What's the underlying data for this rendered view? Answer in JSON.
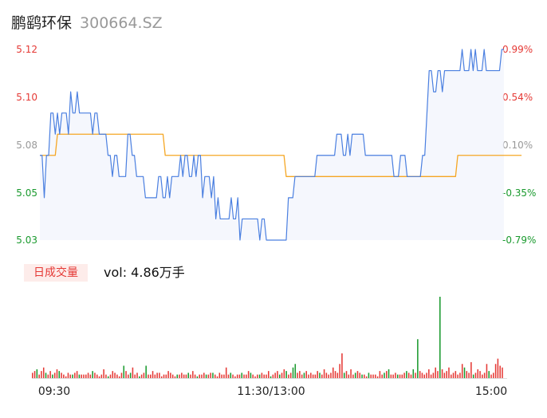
{
  "header": {
    "stock_name": "鹏鹞环保",
    "stock_code": "300664.SZ"
  },
  "colors": {
    "price_line": "#4a7fe0",
    "avg_line": "#f5a623",
    "up": "#e53935",
    "down": "#1a9a2e",
    "neutral": "#999999"
  },
  "chart_data": [
    {
      "type": "line",
      "y_left_ticks": [
        "5.12",
        "5.10",
        "5.08",
        "5.05",
        "5.03"
      ],
      "y_right_ticks": [
        "0.99%",
        "0.54%",
        "0.10%",
        "-0.35%",
        "-0.79%"
      ],
      "ylim": [
        5.03,
        5.12
      ],
      "x_tick_labels": [
        "09:30",
        "11:30/13:00",
        "15:00"
      ],
      "series": [
        {
          "values": [
            5.07,
            5.07,
            5.05,
            5.07,
            5.07,
            5.09,
            5.09,
            5.08,
            5.09,
            5.08,
            5.09,
            5.09,
            5.09,
            5.08,
            5.1,
            5.09,
            5.09,
            5.1,
            5.09,
            5.09,
            5.09,
            5.09,
            5.09,
            5.09,
            5.08,
            5.09,
            5.09,
            5.08,
            5.08,
            5.08,
            5.08,
            5.07,
            5.07,
            5.06,
            5.07,
            5.07,
            5.06,
            5.06,
            5.06,
            5.06,
            5.08,
            5.08,
            5.07,
            5.07,
            5.06,
            5.06,
            5.06,
            5.06,
            5.05,
            5.05,
            5.05,
            5.05,
            5.05,
            5.05,
            5.06,
            5.06,
            5.05,
            5.05,
            5.06,
            5.05,
            5.06,
            5.06,
            5.06,
            5.06,
            5.07,
            5.06,
            5.07,
            5.07,
            5.06,
            5.06,
            5.07,
            5.06,
            5.07,
            5.07,
            5.05,
            5.06,
            5.06,
            5.06,
            5.05,
            5.06,
            5.04,
            5.05,
            5.04,
            5.04,
            5.04,
            5.04,
            5.04,
            5.05,
            5.04,
            5.04,
            5.05,
            5.03,
            5.04,
            5.04,
            5.04,
            5.04,
            5.04,
            5.04,
            5.04,
            5.04,
            5.03,
            5.04,
            5.04,
            5.03,
            5.03,
            5.03,
            5.03,
            5.03,
            5.03,
            5.03,
            5.03,
            5.03,
            5.03,
            5.05,
            5.05,
            5.05,
            5.06,
            5.06,
            5.06,
            5.06,
            5.06,
            5.06,
            5.06,
            5.06,
            5.06,
            5.06,
            5.07,
            5.07,
            5.07,
            5.07,
            5.07,
            5.07,
            5.07,
            5.07,
            5.07,
            5.08,
            5.08,
            5.08,
            5.07,
            5.07,
            5.08,
            5.07,
            5.08,
            5.08,
            5.08,
            5.08,
            5.08,
            5.08,
            5.07,
            5.07,
            5.07,
            5.07,
            5.07,
            5.07,
            5.07,
            5.07,
            5.07,
            5.07,
            5.07,
            5.07,
            5.07,
            5.06,
            5.06,
            5.06,
            5.07,
            5.07,
            5.07,
            5.06,
            5.06,
            5.06,
            5.06,
            5.06,
            5.06,
            5.06,
            5.07,
            5.07,
            5.09,
            5.11,
            5.11,
            5.1,
            5.1,
            5.11,
            5.11,
            5.1,
            5.11,
            5.11,
            5.11,
            5.11,
            5.11,
            5.11,
            5.11,
            5.11,
            5.12,
            5.11,
            5.11,
            5.11,
            5.12,
            5.11,
            5.12,
            5.11,
            5.11,
            5.11,
            5.12,
            5.11,
            5.11,
            5.11,
            5.11,
            5.11,
            5.11,
            5.11,
            5.12,
            5.12
          ]
        },
        {
          "values": [
            5.07,
            5.07,
            5.07,
            5.07,
            5.07,
            5.07,
            5.07,
            5.07,
            5.08,
            5.08,
            5.08,
            5.08,
            5.08,
            5.08,
            5.08,
            5.08,
            5.08,
            5.08,
            5.08,
            5.08,
            5.08,
            5.08,
            5.08,
            5.08,
            5.08,
            5.08,
            5.08,
            5.08,
            5.08,
            5.08,
            5.08,
            5.08,
            5.08,
            5.08,
            5.08,
            5.08,
            5.08,
            5.08,
            5.08,
            5.08,
            5.08,
            5.08,
            5.08,
            5.08,
            5.08,
            5.08,
            5.08,
            5.08,
            5.08,
            5.08,
            5.08,
            5.08,
            5.08,
            5.08,
            5.08,
            5.08,
            5.08,
            5.07,
            5.07,
            5.07,
            5.07,
            5.07,
            5.07,
            5.07,
            5.07,
            5.07,
            5.07,
            5.07,
            5.07,
            5.07,
            5.07,
            5.07,
            5.07,
            5.07,
            5.07,
            5.07,
            5.07,
            5.07,
            5.07,
            5.07,
            5.07,
            5.07,
            5.07,
            5.07,
            5.07,
            5.07,
            5.07,
            5.07,
            5.07,
            5.07,
            5.07,
            5.07,
            5.07,
            5.07,
            5.07,
            5.07,
            5.07,
            5.07,
            5.07,
            5.07,
            5.07,
            5.07,
            5.07,
            5.07,
            5.07,
            5.07,
            5.07,
            5.07,
            5.07,
            5.07,
            5.07,
            5.07,
            5.06,
            5.06,
            5.06,
            5.06,
            5.06,
            5.06,
            5.06,
            5.06,
            5.06,
            5.06,
            5.06,
            5.06,
            5.06,
            5.06,
            5.06,
            5.06,
            5.06,
            5.06,
            5.06,
            5.06,
            5.06,
            5.06,
            5.06,
            5.06,
            5.06,
            5.06,
            5.06,
            5.06,
            5.06,
            5.06,
            5.06,
            5.06,
            5.06,
            5.06,
            5.06,
            5.06,
            5.06,
            5.06,
            5.06,
            5.06,
            5.06,
            5.06,
            5.06,
            5.06,
            5.06,
            5.06,
            5.06,
            5.06,
            5.06,
            5.06,
            5.06,
            5.06,
            5.06,
            5.06,
            5.06,
            5.06,
            5.06,
            5.06,
            5.06,
            5.06,
            5.06,
            5.06,
            5.06,
            5.06,
            5.06,
            5.06,
            5.06,
            5.06,
            5.06,
            5.06,
            5.06,
            5.06,
            5.06,
            5.06,
            5.06,
            5.06,
            5.06,
            5.06,
            5.07,
            5.07,
            5.07,
            5.07,
            5.07,
            5.07,
            5.07,
            5.07,
            5.07,
            5.07,
            5.07,
            5.07,
            5.07,
            5.07,
            5.07,
            5.07,
            5.07,
            5.07,
            5.07,
            5.07,
            5.07,
            5.07,
            5.07,
            5.07,
            5.07,
            5.07,
            5.07,
            5.07,
            5.07,
            5.07
          ]
        }
      ]
    },
    {
      "type": "bar",
      "legend_label": "日成交量",
      "vol_text": "vol: 4.86万手",
      "values": [
        3,
        4,
        5,
        2,
        4,
        6,
        3,
        2,
        4,
        2,
        3,
        5,
        4,
        3,
        2,
        1,
        3,
        2,
        2,
        3,
        4,
        2,
        2,
        2,
        2,
        3,
        2,
        4,
        3,
        2,
        1,
        2,
        5,
        2,
        1,
        2,
        4,
        3,
        2,
        1,
        3,
        7,
        4,
        2,
        3,
        6,
        2,
        3,
        1,
        2,
        3,
        7,
        2,
        2,
        4,
        2,
        3,
        3,
        1,
        2,
        2,
        4,
        3,
        2,
        1,
        2,
        2,
        3,
        2,
        2,
        3,
        2,
        4,
        2,
        1,
        2,
        2,
        3,
        2,
        2,
        3,
        3,
        2,
        1,
        3,
        2,
        2,
        6,
        2,
        3,
        2,
        1,
        2,
        2,
        3,
        2,
        2,
        4,
        3,
        2,
        1,
        2,
        2,
        3,
        2,
        2,
        4,
        1,
        2,
        3,
        4,
        2,
        3,
        5,
        4,
        2,
        3,
        6,
        8,
        3,
        4,
        2,
        3,
        4,
        2,
        3,
        2,
        2,
        4,
        3,
        2,
        5,
        3,
        2,
        3,
        6,
        4,
        3,
        8,
        14,
        3,
        4,
        2,
        5,
        2,
        3,
        4,
        3,
        2,
        2,
        1,
        3,
        2,
        2,
        2,
        1,
        4,
        2,
        3,
        4,
        5,
        2,
        2,
        3,
        2,
        2,
        2,
        3,
        4,
        3,
        2,
        5,
        3,
        22,
        4,
        3,
        2,
        3,
        5,
        2,
        3,
        6,
        4,
        46,
        5,
        3,
        4,
        6,
        2,
        3,
        4,
        2,
        3,
        8,
        6,
        4,
        3,
        9,
        2,
        3,
        5,
        4,
        2,
        3,
        8,
        4,
        2,
        3,
        8,
        11,
        7,
        6
      ],
      "colors": [
        "u",
        "u",
        "d",
        "u",
        "u",
        "u",
        "d",
        "u",
        "u",
        "d",
        "u",
        "u",
        "d",
        "u",
        "u",
        "u",
        "u",
        "u",
        "d",
        "u",
        "u",
        "d",
        "u",
        "u",
        "u",
        "u",
        "u",
        "d",
        "u",
        "u",
        "u",
        "u",
        "u",
        "u",
        "d",
        "u",
        "u",
        "u",
        "u",
        "u",
        "u",
        "d",
        "u",
        "u",
        "d",
        "u",
        "u",
        "u",
        "d",
        "u",
        "u",
        "d",
        "u",
        "u",
        "u",
        "u",
        "u",
        "u",
        "u",
        "u",
        "u",
        "u",
        "u",
        "u",
        "u",
        "d",
        "u",
        "u",
        "u",
        "u",
        "d",
        "u",
        "u",
        "u",
        "d",
        "u",
        "u",
        "u",
        "d",
        "u",
        "u",
        "d",
        "u",
        "u",
        "u",
        "u",
        "u",
        "u",
        "u",
        "d",
        "u",
        "u",
        "u",
        "u",
        "d",
        "u",
        "u",
        "u",
        "d",
        "u",
        "u",
        "u",
        "d",
        "u",
        "u",
        "u",
        "u",
        "d",
        "u",
        "u",
        "u",
        "d",
        "u",
        "u",
        "d",
        "u",
        "u",
        "d",
        "d",
        "u",
        "u",
        "u",
        "d",
        "u",
        "u",
        "u",
        "u",
        "u",
        "u",
        "d",
        "u",
        "u",
        "u",
        "u",
        "u",
        "u",
        "u",
        "u",
        "u",
        "u",
        "d",
        "u",
        "u",
        "u",
        "u",
        "d",
        "u",
        "u",
        "d",
        "u",
        "u",
        "d",
        "u",
        "u",
        "u",
        "u",
        "u",
        "u",
        "d",
        "u",
        "d",
        "u",
        "u",
        "u",
        "d",
        "u",
        "u",
        "u",
        "d",
        "u",
        "u",
        "d",
        "u",
        "d",
        "u",
        "u",
        "u",
        "u",
        "u",
        "u",
        "u",
        "u",
        "u",
        "d",
        "u",
        "u",
        "u",
        "u",
        "u",
        "u",
        "u",
        "u",
        "u",
        "u",
        "d",
        "u",
        "u",
        "u",
        "d",
        "u",
        "u",
        "u",
        "u",
        "u",
        "u",
        "d",
        "u",
        "u",
        "u",
        "u",
        "u",
        "u",
        "u",
        "u"
      ]
    }
  ]
}
